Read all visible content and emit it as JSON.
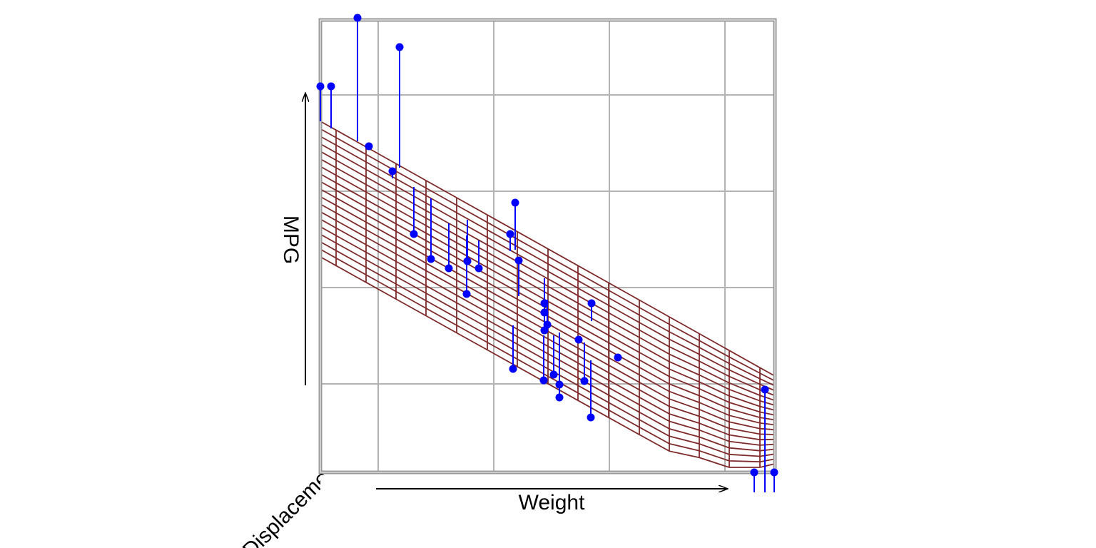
{
  "chart_data": {
    "type": "scatter3d",
    "xlabel": "Weight",
    "ylabel": "MPG",
    "zlabel": "Displaceme",
    "xlim": [
      0,
      637
    ],
    "ylim": [
      0,
      634
    ],
    "xticks": [
      81,
      243,
      405,
      567
    ],
    "yticks": [
      124,
      259,
      394,
      529
    ],
    "grid": true,
    "color": "#0000ff",
    "plane_color": "#7f2a2a",
    "x": [
      0,
      15,
      52,
      68,
      101,
      111,
      131,
      155,
      180,
      206,
      205,
      222,
      266,
      273,
      278,
      270,
      314,
      314,
      318,
      314,
      313,
      327,
      335,
      335,
      362,
      370,
      380,
      379,
      417,
      623,
      608,
      636
    ],
    "values": [
      541,
      541,
      637,
      457,
      422,
      596,
      334,
      299,
      286,
      296,
      250,
      286,
      334,
      378,
      297,
      145,
      237,
      224,
      207,
      199,
      129,
      137,
      123,
      105,
      186,
      128,
      237,
      77,
      161,
      116,
      0,
      0
    ],
    "fitted": [
      492,
      482,
      464,
      457,
      412,
      427,
      400,
      384,
      349,
      354,
      332,
      325,
      310,
      312,
      247,
      206,
      272,
      252,
      242,
      232,
      192,
      192,
      196,
      132,
      184,
      182,
      212,
      157,
      161,
      -28,
      -28,
      -28
    ]
  }
}
